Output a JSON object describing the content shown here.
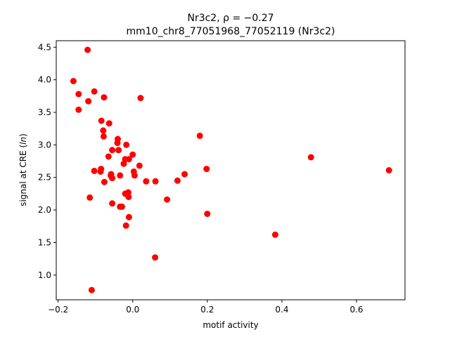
{
  "chart_data": {
    "type": "scatter",
    "title_line1": "Nr3c2, ρ = −0.27",
    "title_line2": "mm10_chr8_77051968_77052119 (Nr3c2)",
    "xlabel": "motif activity",
    "ylabel": "signal at CRE (ln)",
    "xlim": [
      -0.205,
      0.73
    ],
    "ylim": [
      0.62,
      4.6
    ],
    "xticks": [
      -0.2,
      0.0,
      0.2,
      0.4,
      0.6
    ],
    "xtick_labels": [
      "−0.2",
      "0.0",
      "0.2",
      "0.4",
      "0.6"
    ],
    "yticks": [
      1.0,
      1.5,
      2.0,
      2.5,
      3.0,
      3.5,
      4.0,
      4.5
    ],
    "ytick_labels": [
      "1.0",
      "1.5",
      "2.0",
      "2.5",
      "3.0",
      "3.5",
      "4.0",
      "4.5"
    ],
    "grid": false,
    "marker_color": "#ff0000",
    "points": [
      {
        "x": -0.121,
        "y": 4.46
      },
      {
        "x": -0.159,
        "y": 3.98
      },
      {
        "x": -0.145,
        "y": 3.78
      },
      {
        "x": -0.103,
        "y": 3.82
      },
      {
        "x": -0.077,
        "y": 3.73
      },
      {
        "x": -0.119,
        "y": 3.67
      },
      {
        "x": 0.021,
        "y": 3.72
      },
      {
        "x": -0.145,
        "y": 3.54
      },
      {
        "x": -0.084,
        "y": 3.37
      },
      {
        "x": -0.063,
        "y": 3.33
      },
      {
        "x": -0.079,
        "y": 3.22
      },
      {
        "x": -0.078,
        "y": 3.13
      },
      {
        "x": 0.18,
        "y": 3.14
      },
      {
        "x": -0.04,
        "y": 3.09
      },
      {
        "x": -0.041,
        "y": 3.03
      },
      {
        "x": -0.017,
        "y": 3.0
      },
      {
        "x": -0.055,
        "y": 2.92
      },
      {
        "x": -0.038,
        "y": 2.92
      },
      {
        "x": -0.065,
        "y": 2.82
      },
      {
        "x": 0.0,
        "y": 2.85
      },
      {
        "x": -0.02,
        "y": 2.78
      },
      {
        "x": -0.01,
        "y": 2.78
      },
      {
        "x": 0.478,
        "y": 2.81
      },
      {
        "x": -0.024,
        "y": 2.71
      },
      {
        "x": 0.018,
        "y": 2.68
      },
      {
        "x": -0.085,
        "y": 2.63
      },
      {
        "x": 0.198,
        "y": 2.63
      },
      {
        "x": -0.103,
        "y": 2.6
      },
      {
        "x": -0.086,
        "y": 2.59
      },
      {
        "x": 0.003,
        "y": 2.59
      },
      {
        "x": 0.687,
        "y": 2.61
      },
      {
        "x": -0.058,
        "y": 2.55
      },
      {
        "x": -0.059,
        "y": 2.53
      },
      {
        "x": -0.034,
        "y": 2.53
      },
      {
        "x": 0.005,
        "y": 2.53
      },
      {
        "x": 0.139,
        "y": 2.55
      },
      {
        "x": -0.055,
        "y": 2.49
      },
      {
        "x": -0.076,
        "y": 2.43
      },
      {
        "x": 0.036,
        "y": 2.44
      },
      {
        "x": 0.061,
        "y": 2.44
      },
      {
        "x": 0.12,
        "y": 2.45
      },
      {
        "x": -0.012,
        "y": 2.27
      },
      {
        "x": -0.02,
        "y": 2.25
      },
      {
        "x": -0.115,
        "y": 2.19
      },
      {
        "x": -0.011,
        "y": 2.2
      },
      {
        "x": 0.092,
        "y": 2.16
      },
      {
        "x": -0.055,
        "y": 2.1
      },
      {
        "x": -0.034,
        "y": 2.05
      },
      {
        "x": -0.029,
        "y": 2.05
      },
      {
        "x": 0.2,
        "y": 1.94
      },
      {
        "x": -0.01,
        "y": 1.89
      },
      {
        "x": -0.018,
        "y": 1.76
      },
      {
        "x": 0.382,
        "y": 1.62
      },
      {
        "x": 0.06,
        "y": 1.27
      },
      {
        "x": -0.11,
        "y": 0.77
      }
    ]
  }
}
